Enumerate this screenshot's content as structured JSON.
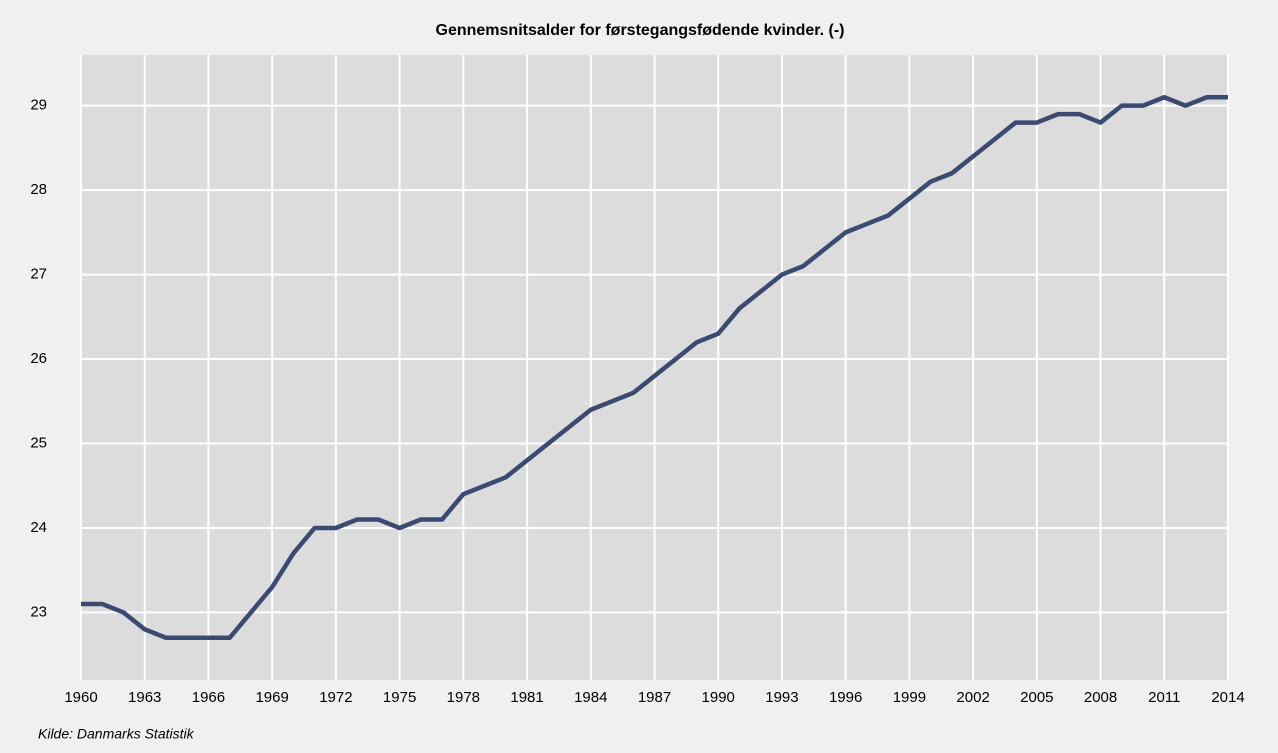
{
  "chart_data": {
    "type": "line",
    "title": "Gennemsnitsalder for førstegangsfødende kvinder. (-)",
    "source": "Kilde: Danmarks Statistik",
    "x": [
      1960,
      1961,
      1962,
      1963,
      1964,
      1965,
      1966,
      1967,
      1968,
      1969,
      1970,
      1971,
      1972,
      1973,
      1974,
      1975,
      1976,
      1977,
      1978,
      1979,
      1980,
      1981,
      1982,
      1983,
      1984,
      1985,
      1986,
      1987,
      1988,
      1989,
      1990,
      1991,
      1992,
      1993,
      1994,
      1995,
      1996,
      1997,
      1998,
      1999,
      2000,
      2001,
      2002,
      2003,
      2004,
      2005,
      2006,
      2007,
      2008,
      2009,
      2010,
      2011,
      2012,
      2013,
      2014
    ],
    "values": [
      23.1,
      23.1,
      23.0,
      22.8,
      22.7,
      22.7,
      22.7,
      22.7,
      23.0,
      23.3,
      23.7,
      24.0,
      24.0,
      24.1,
      24.1,
      24.0,
      24.1,
      24.1,
      24.4,
      24.5,
      24.6,
      24.8,
      25.0,
      25.2,
      25.4,
      25.5,
      25.6,
      25.8,
      26.0,
      26.2,
      26.3,
      26.6,
      26.8,
      27.0,
      27.1,
      27.3,
      27.5,
      27.6,
      27.7,
      27.9,
      28.1,
      28.2,
      28.4,
      28.6,
      28.8,
      28.8,
      28.9,
      28.9,
      28.8,
      29.0,
      29.0,
      29.1,
      29.0,
      29.1,
      29.1
    ],
    "color": "#3b4a70",
    "xlim": [
      1960,
      2014
    ],
    "xticks": [
      1960,
      1963,
      1966,
      1969,
      1972,
      1975,
      1978,
      1981,
      1984,
      1987,
      1990,
      1993,
      1996,
      1999,
      2002,
      2005,
      2008,
      2011,
      2014
    ],
    "ylim": [
      22.2,
      29.6
    ],
    "yticks": [
      23,
      24,
      25,
      26,
      27,
      28,
      29
    ],
    "grid": true
  }
}
